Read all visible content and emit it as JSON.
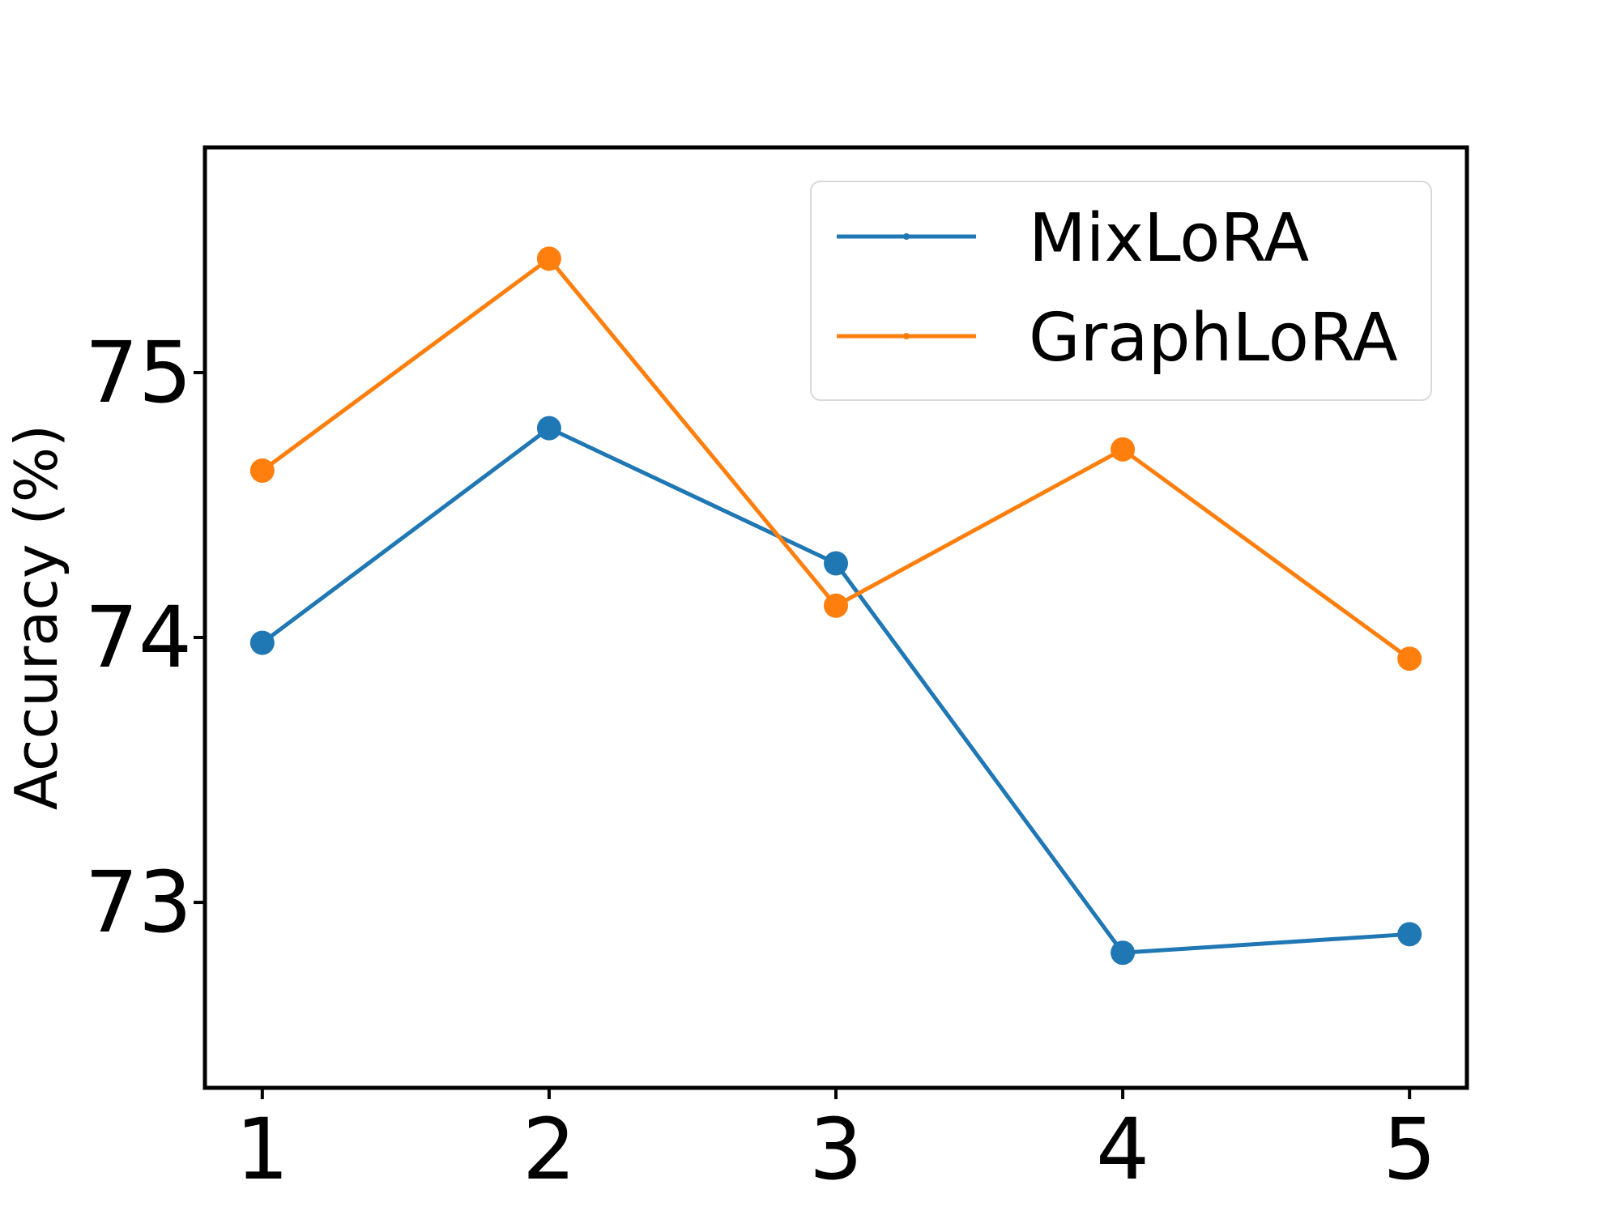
{
  "chart_data": {
    "type": "line",
    "title": "",
    "xlabel": "",
    "ylabel": "Accuracy (%)",
    "x": [
      1,
      2,
      3,
      4,
      5
    ],
    "xlim": [
      0.8,
      5.2
    ],
    "ylim": [
      72.3,
      75.85
    ],
    "xticks": [
      1,
      2,
      3,
      4,
      5
    ],
    "yticks": [
      73,
      74,
      75
    ],
    "grid": false,
    "legend_position": "top-right",
    "series": [
      {
        "name": "MixLoRA",
        "color": "#1f77b4",
        "values": [
          73.98,
          74.79,
          74.28,
          72.81,
          72.88
        ]
      },
      {
        "name": "GraphLoRA",
        "color": "#ff7f0e",
        "values": [
          74.63,
          75.43,
          74.12,
          74.71,
          73.92
        ]
      }
    ]
  }
}
